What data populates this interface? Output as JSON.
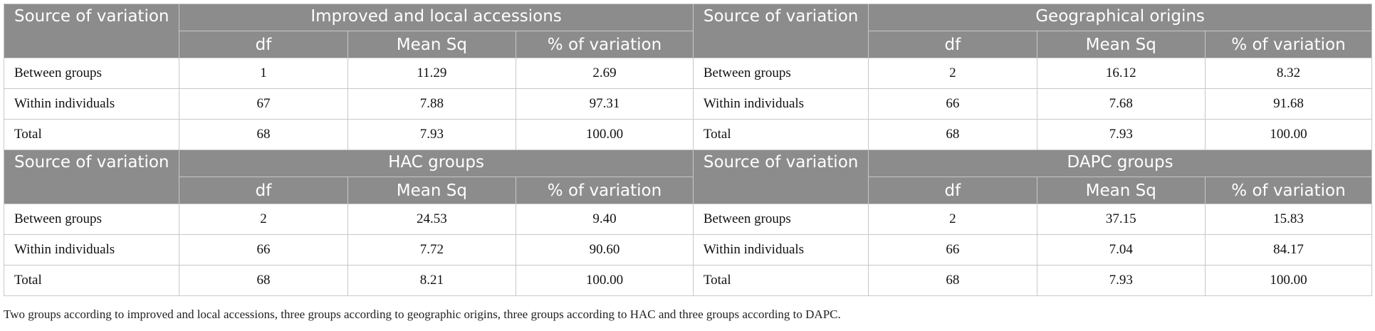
{
  "blocks": [
    {
      "left_title": "Source of variation",
      "left_group": "Improved and local accessions",
      "right_title": "Source of variation",
      "right_group": "Geographical origins",
      "cols": [
        "df",
        "Mean Sq",
        "% of variation"
      ],
      "rows": [
        {
          "label": "Between groups",
          "left": [
            "1",
            "11.29",
            "2.69"
          ],
          "right_label": "Between groups",
          "right": [
            "2",
            "16.12",
            "8.32"
          ]
        },
        {
          "label": "Within individuals",
          "left": [
            "67",
            "7.88",
            "97.31"
          ],
          "right_label": "Within individuals",
          "right": [
            "66",
            "7.68",
            "91.68"
          ]
        },
        {
          "label": "Total",
          "left": [
            "68",
            "7.93",
            "100.00"
          ],
          "right_label": "Total",
          "right": [
            "68",
            "7.93",
            "100.00"
          ]
        }
      ]
    },
    {
      "left_title": "Source of variation",
      "left_group": "HAC groups",
      "right_title": "Source of variation",
      "right_group": "DAPC groups",
      "cols": [
        "df",
        "Mean Sq",
        "% of variation"
      ],
      "rows": [
        {
          "label": "Between groups",
          "left": [
            "2",
            "24.53",
            "9.40"
          ],
          "right_label": "Between groups",
          "right": [
            "2",
            "37.15",
            "15.83"
          ]
        },
        {
          "label": "Within individuals",
          "left": [
            "66",
            "7.72",
            "90.60"
          ],
          "right_label": "Within individuals",
          "right": [
            "66",
            "7.04",
            "84.17"
          ]
        },
        {
          "label": "Total",
          "left": [
            "68",
            "8.21",
            "100.00"
          ],
          "right_label": "Total",
          "right": [
            "68",
            "7.93",
            "100.00"
          ]
        }
      ]
    }
  ],
  "footnote": "Two groups according to improved and local accessions, three groups according to geographic origins, three groups according to HAC and three groups according to DAPC."
}
